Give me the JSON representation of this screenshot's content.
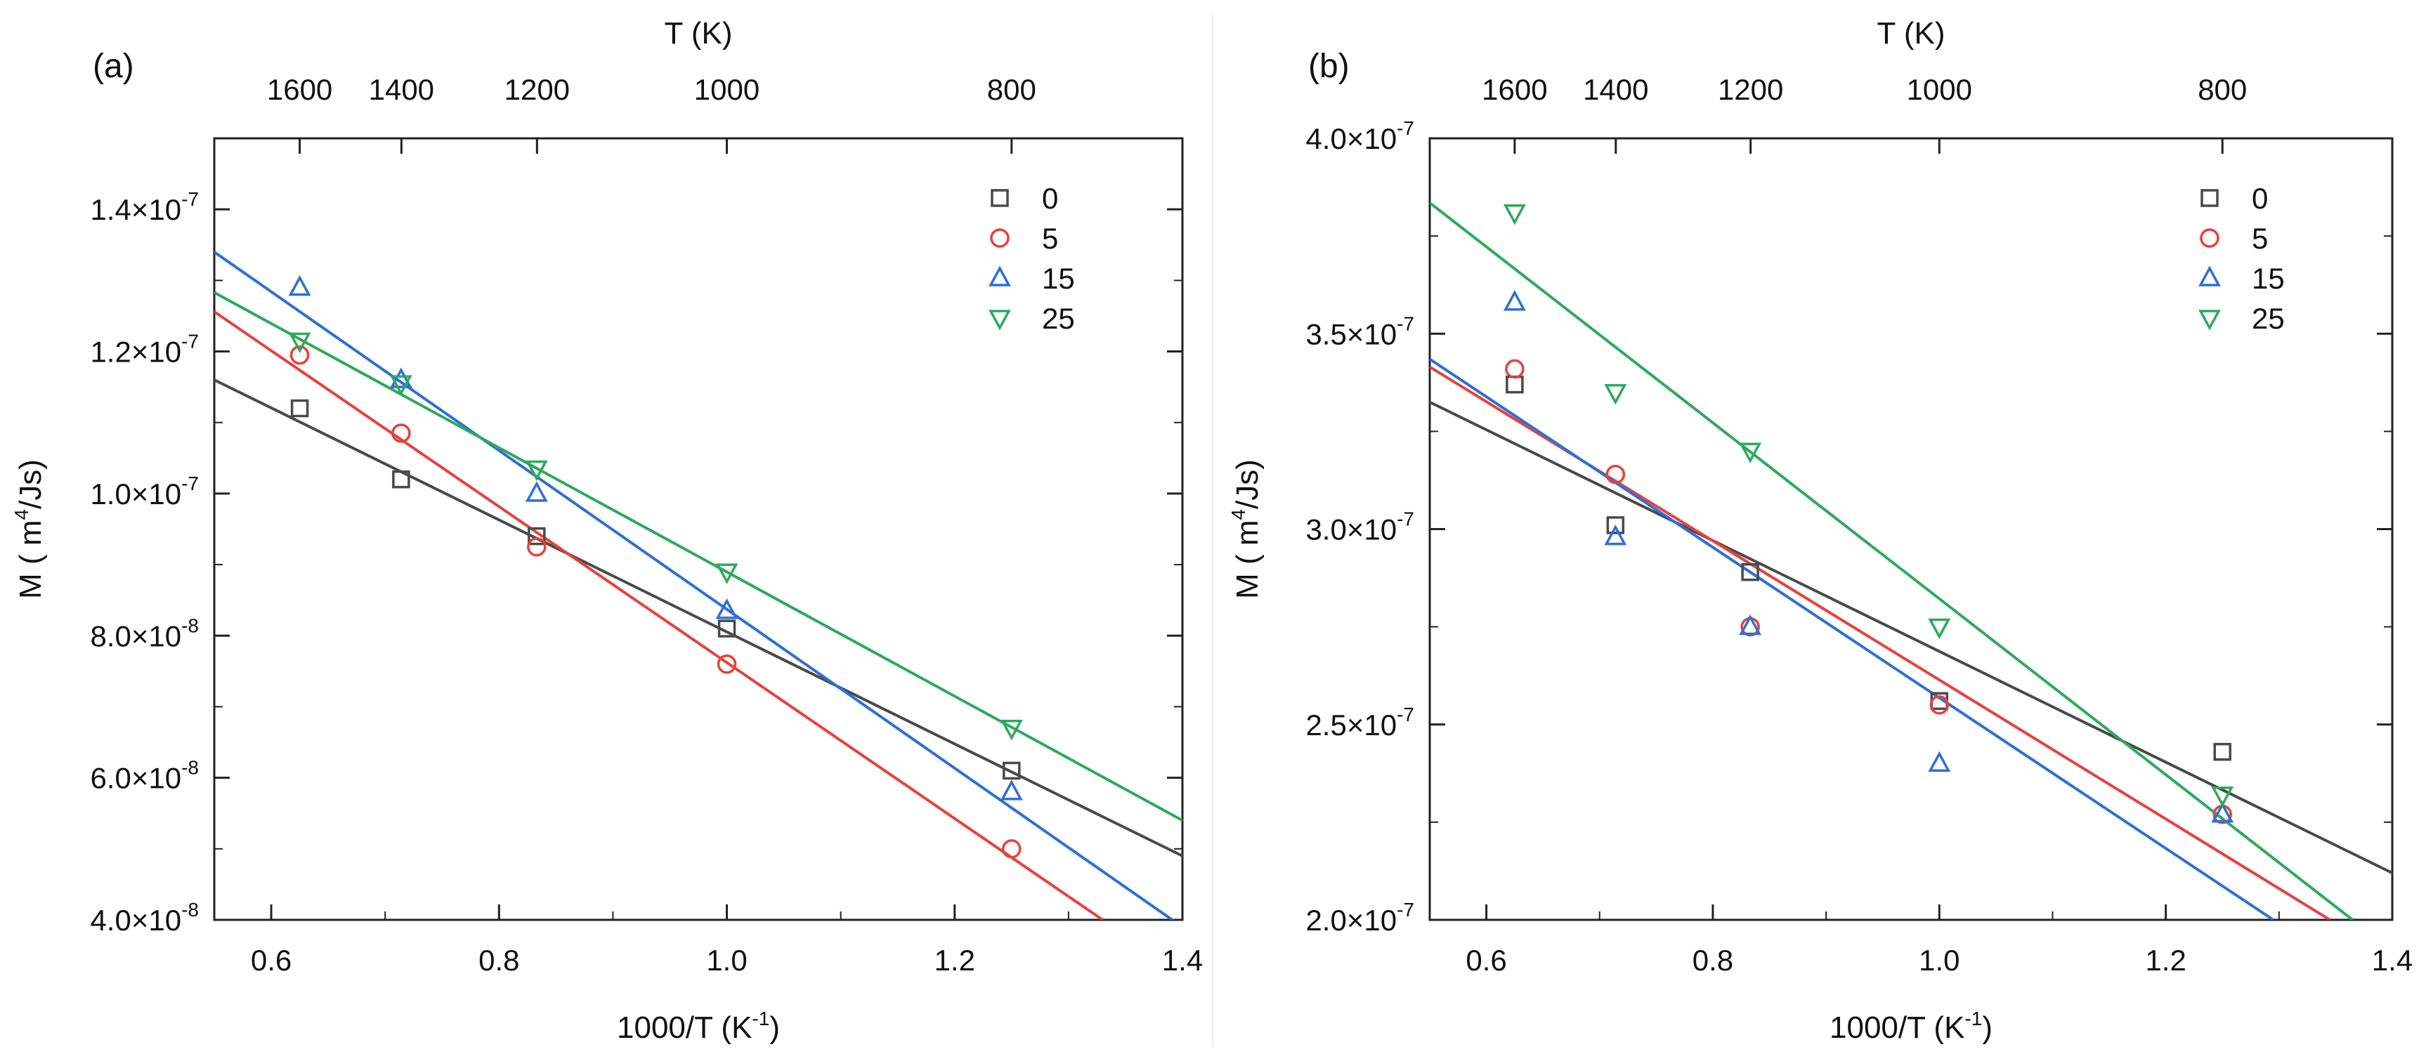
{
  "chart_data": [
    {
      "type": "scatter",
      "panel_label": "(a)",
      "xlabel_main": "1000/T (K",
      "xlabel_sup": "-1",
      "xlabel_end": ")",
      "ylabel_main": "M ( m",
      "ylabel_sup": "4",
      "ylabel_end": "/Js)",
      "top_axis_title": "T (K)",
      "top_ticks": [
        {
          "label": "1600",
          "value": 1600
        },
        {
          "label": "1400",
          "value": 1400
        },
        {
          "label": "1200",
          "value": 1200
        },
        {
          "label": "1000",
          "value": 1000
        },
        {
          "label": "800",
          "value": 800
        }
      ],
      "xlim": [
        0.55,
        1.4
      ],
      "ylim": [
        4e-08,
        1.5e-07
      ],
      "x_ticks": [
        {
          "label": "0.6",
          "value": 0.6
        },
        {
          "label": "0.8",
          "value": 0.8
        },
        {
          "label": "1.0",
          "value": 1.0
        },
        {
          "label": "1.2",
          "value": 1.2
        },
        {
          "label": "1.4",
          "value": 1.4
        }
      ],
      "y_ticks": [
        {
          "mant": "4.0×10",
          "exp": "-8",
          "value": 4e-08
        },
        {
          "mant": "6.0×10",
          "exp": "-8",
          "value": 6e-08
        },
        {
          "mant": "8.0×10",
          "exp": "-8",
          "value": 8e-08
        },
        {
          "mant": "1.0×10",
          "exp": "-7",
          "value": 1e-07
        },
        {
          "mant": "1.2×10",
          "exp": "-7",
          "value": 1.2e-07
        },
        {
          "mant": "1.4×10",
          "exp": "-7",
          "value": 1.4e-07
        }
      ],
      "legend_position": "top-right",
      "series": [
        {
          "name": "0",
          "marker": "square",
          "color": "#4a4a4a",
          "x": [
            0.625,
            0.714,
            0.833,
            1.0,
            1.25
          ],
          "y": [
            1.12e-07,
            1.02e-07,
            9.4e-08,
            8.1e-08,
            6.1e-08
          ],
          "fit": [
            [
              0.55,
              1.16e-07
            ],
            [
              1.4,
              4.9e-08
            ]
          ]
        },
        {
          "name": "5",
          "marker": "circle",
          "color": "#e8413c",
          "x": [
            0.625,
            0.714,
            0.833,
            1.0,
            1.25
          ],
          "y": [
            1.195e-07,
            1.085e-07,
            9.25e-08,
            7.6e-08,
            5e-08
          ],
          "fit": [
            [
              0.55,
              1.256e-07
            ],
            [
              1.33,
              4e-08
            ]
          ]
        },
        {
          "name": "15",
          "marker": "triangle-up",
          "color": "#2f6fd6",
          "x": [
            0.625,
            0.714,
            0.833,
            1.0,
            1.25
          ],
          "y": [
            1.29e-07,
            1.16e-07,
            1e-07,
            8.35e-08,
            5.8e-08
          ],
          "fit": [
            [
              0.55,
              1.34e-07
            ],
            [
              1.4,
              3.9e-08
            ]
          ]
        },
        {
          "name": "25",
          "marker": "triangle-down",
          "color": "#2ea95a",
          "x": [
            0.625,
            0.714,
            0.833,
            1.0,
            1.25
          ],
          "y": [
            1.215e-07,
            1.155e-07,
            1.035e-07,
            8.9e-08,
            6.7e-08
          ],
          "fit": [
            [
              0.55,
              1.283e-07
            ],
            [
              1.4,
              5.4e-08
            ]
          ]
        }
      ]
    },
    {
      "type": "scatter",
      "panel_label": "(b)",
      "xlabel_main": "1000/T (K",
      "xlabel_sup": "-1",
      "xlabel_end": ")",
      "ylabel_main": "M ( m",
      "ylabel_sup": "4",
      "ylabel_end": "/Js)",
      "top_axis_title": "T (K)",
      "top_ticks": [
        {
          "label": "1600",
          "value": 1600
        },
        {
          "label": "1400",
          "value": 1400
        },
        {
          "label": "1200",
          "value": 1200
        },
        {
          "label": "1000",
          "value": 1000
        },
        {
          "label": "800",
          "value": 800
        }
      ],
      "xlim": [
        0.55,
        1.4
      ],
      "ylim": [
        2e-07,
        4e-07
      ],
      "x_ticks": [
        {
          "label": "0.6",
          "value": 0.6
        },
        {
          "label": "0.8",
          "value": 0.8
        },
        {
          "label": "1.0",
          "value": 1.0
        },
        {
          "label": "1.2",
          "value": 1.2
        },
        {
          "label": "1.4",
          "value": 1.4
        }
      ],
      "y_ticks": [
        {
          "mant": "2.0×10",
          "exp": "-7",
          "value": 2e-07
        },
        {
          "mant": "2.5×10",
          "exp": "-7",
          "value": 2.5e-07
        },
        {
          "mant": "3.0×10",
          "exp": "-7",
          "value": 3e-07
        },
        {
          "mant": "3.5×10",
          "exp": "-7",
          "value": 3.5e-07
        },
        {
          "mant": "4.0×10",
          "exp": "-7",
          "value": 4e-07
        }
      ],
      "legend_position": "top-right",
      "series": [
        {
          "name": "0",
          "marker": "square",
          "color": "#4a4a4a",
          "x": [
            0.625,
            0.714,
            0.833,
            1.0,
            1.25
          ],
          "y": [
            3.37e-07,
            3.01e-07,
            2.89e-07,
            2.56e-07,
            2.43e-07
          ],
          "fit": [
            [
              0.55,
              3.325e-07
            ],
            [
              1.4,
              2.12e-07
            ]
          ]
        },
        {
          "name": "5",
          "marker": "circle",
          "color": "#e8413c",
          "x": [
            0.625,
            0.714,
            0.833,
            1.0,
            1.25
          ],
          "y": [
            3.41e-07,
            3.14e-07,
            2.75e-07,
            2.55e-07,
            2.27e-07
          ],
          "fit": [
            [
              0.55,
              3.415e-07
            ],
            [
              1.345,
              2e-07
            ]
          ]
        },
        {
          "name": "15",
          "marker": "triangle-up",
          "color": "#2f6fd6",
          "x": [
            0.625,
            0.714,
            0.833,
            1.0,
            1.25
          ],
          "y": [
            3.58e-07,
            2.98e-07,
            2.75e-07,
            2.4e-07,
            2.27e-07
          ],
          "fit": [
            [
              0.55,
              3.435e-07
            ],
            [
              1.295,
              2e-07
            ]
          ]
        },
        {
          "name": "25",
          "marker": "triangle-down",
          "color": "#2ea95a",
          "x": [
            0.625,
            0.714,
            0.833,
            1.0,
            1.25
          ],
          "y": [
            3.81e-07,
            3.35e-07,
            3.2e-07,
            2.75e-07,
            2.32e-07
          ],
          "fit": [
            [
              0.55,
              3.835e-07
            ],
            [
              1.365,
              2e-07
            ]
          ]
        }
      ]
    }
  ]
}
